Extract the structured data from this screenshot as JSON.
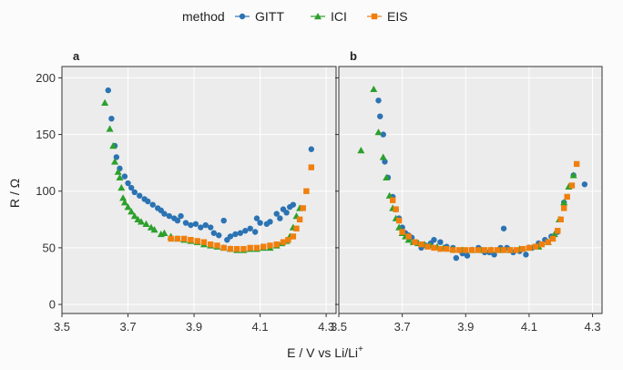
{
  "legend": {
    "title": "method",
    "items": [
      {
        "name": "GITT",
        "color": "#2b73b3",
        "shape": "circle"
      },
      {
        "name": "ICI",
        "color": "#2ca02c",
        "shape": "triangle"
      },
      {
        "name": "EIS",
        "color": "#f07f0e",
        "shape": "square"
      }
    ]
  },
  "xlabel": "E / V vs Li/Li",
  "xlabel_sup": "+",
  "ylabel": "R / Ω",
  "chart_data": [
    {
      "panel": "a",
      "type": "scatter",
      "xlim": [
        3.5,
        4.33
      ],
      "ylim": [
        -8,
        210
      ],
      "xticks": [
        3.5,
        3.7,
        3.9,
        4.1,
        4.3
      ],
      "xticklabels": [
        "3.5",
        "3.7",
        "3.9",
        "4.1",
        "4.3"
      ],
      "yticks": [
        0,
        50,
        100,
        150,
        200
      ],
      "yticklabels": [
        "0",
        "50",
        "100",
        "150",
        "200"
      ],
      "grid": true,
      "series": [
        {
          "name": "GITT",
          "points": [
            [
              3.64,
              189
            ],
            [
              3.65,
              164
            ],
            [
              3.66,
              140
            ],
            [
              3.665,
              130
            ],
            [
              3.675,
              120
            ],
            [
              3.69,
              113
            ],
            [
              3.7,
              107
            ],
            [
              3.71,
              103
            ],
            [
              3.72,
              99
            ],
            [
              3.735,
              96
            ],
            [
              3.75,
              93
            ],
            [
              3.76,
              91
            ],
            [
              3.775,
              88
            ],
            [
              3.79,
              85
            ],
            [
              3.8,
              83
            ],
            [
              3.81,
              80
            ],
            [
              3.825,
              78
            ],
            [
              3.84,
              76
            ],
            [
              3.85,
              74
            ],
            [
              3.86,
              78
            ],
            [
              3.875,
              72
            ],
            [
              3.89,
              70
            ],
            [
              3.905,
              71
            ],
            [
              3.92,
              68
            ],
            [
              3.935,
              70
            ],
            [
              3.95,
              68
            ],
            [
              3.96,
              63
            ],
            [
              3.975,
              61
            ],
            [
              3.99,
              74
            ],
            [
              4.0,
              57
            ],
            [
              4.01,
              60
            ],
            [
              4.025,
              62
            ],
            [
              4.04,
              63
            ],
            [
              4.055,
              65
            ],
            [
              4.07,
              67
            ],
            [
              4.085,
              64
            ],
            [
              4.09,
              76
            ],
            [
              4.1,
              72
            ],
            [
              4.12,
              71
            ],
            [
              4.13,
              73
            ],
            [
              4.15,
              80
            ],
            [
              4.16,
              76
            ],
            [
              4.17,
              84
            ],
            [
              4.18,
              81
            ],
            [
              4.19,
              86
            ],
            [
              4.2,
              88
            ],
            [
              4.255,
              137
            ]
          ]
        },
        {
          "name": "ICI",
          "points": [
            [
              3.63,
              178
            ],
            [
              3.645,
              155
            ],
            [
              3.655,
              140
            ],
            [
              3.66,
              126
            ],
            [
              3.67,
              117
            ],
            [
              3.675,
              112
            ],
            [
              3.68,
              103
            ],
            [
              3.685,
              94
            ],
            [
              3.69,
              90
            ],
            [
              3.7,
              86
            ],
            [
              3.71,
              82
            ],
            [
              3.72,
              78
            ],
            [
              3.73,
              75
            ],
            [
              3.74,
              73
            ],
            [
              3.755,
              71
            ],
            [
              3.77,
              68
            ],
            [
              3.78,
              66
            ],
            [
              3.8,
              62
            ],
            [
              3.81,
              63
            ],
            [
              3.83,
              60
            ],
            [
              3.85,
              58
            ],
            [
              3.87,
              57
            ],
            [
              3.89,
              56
            ],
            [
              3.91,
              55
            ],
            [
              3.93,
              53
            ],
            [
              3.95,
              52
            ],
            [
              3.97,
              51
            ],
            [
              3.99,
              50
            ],
            [
              4.01,
              49
            ],
            [
              4.03,
              48
            ],
            [
              4.05,
              48
            ],
            [
              4.07,
              49
            ],
            [
              4.09,
              49
            ],
            [
              4.11,
              50
            ],
            [
              4.13,
              50
            ],
            [
              4.15,
              52
            ],
            [
              4.165,
              54
            ],
            [
              4.18,
              56
            ],
            [
              4.19,
              60
            ],
            [
              4.2,
              68
            ],
            [
              4.21,
              78
            ],
            [
              4.22,
              85
            ]
          ]
        },
        {
          "name": "EIS",
          "points": [
            [
              3.83,
              58
            ],
            [
              3.85,
              58
            ],
            [
              3.87,
              58
            ],
            [
              3.89,
              57
            ],
            [
              3.91,
              56
            ],
            [
              3.93,
              55
            ],
            [
              3.95,
              53
            ],
            [
              3.97,
              52
            ],
            [
              3.99,
              50
            ],
            [
              4.01,
              49
            ],
            [
              4.03,
              49
            ],
            [
              4.05,
              49
            ],
            [
              4.07,
              50
            ],
            [
              4.09,
              50
            ],
            [
              4.11,
              51
            ],
            [
              4.13,
              52
            ],
            [
              4.15,
              53
            ],
            [
              4.17,
              55
            ],
            [
              4.185,
              57
            ],
            [
              4.2,
              60
            ],
            [
              4.21,
              67
            ],
            [
              4.22,
              75
            ],
            [
              4.23,
              85
            ],
            [
              4.24,
              100
            ],
            [
              4.255,
              121
            ]
          ]
        }
      ]
    },
    {
      "panel": "b",
      "type": "scatter",
      "xlim": [
        3.5,
        4.33
      ],
      "ylim": [
        -8,
        210
      ],
      "xticks": [
        3.5,
        3.7,
        3.9,
        4.1,
        4.3
      ],
      "xticklabels": [
        "3.5",
        "3.7",
        "3.9",
        "4.1",
        "4.3"
      ],
      "yticks": [
        0,
        50,
        100,
        150,
        200
      ],
      "yticklabels": [
        "",
        "",
        "",
        "",
        ""
      ],
      "grid": true,
      "series": [
        {
          "name": "GITT",
          "points": [
            [
              3.625,
              180
            ],
            [
              3.63,
              166
            ],
            [
              3.64,
              150
            ],
            [
              3.645,
              126
            ],
            [
              3.655,
              112
            ],
            [
              3.67,
              95
            ],
            [
              3.68,
              84
            ],
            [
              3.69,
              76
            ],
            [
              3.7,
              68
            ],
            [
              3.71,
              63
            ],
            [
              3.72,
              61
            ],
            [
              3.73,
              59
            ],
            [
              3.745,
              55
            ],
            [
              3.76,
              50
            ],
            [
              3.775,
              52
            ],
            [
              3.79,
              54
            ],
            [
              3.8,
              57
            ],
            [
              3.82,
              55
            ],
            [
              3.84,
              51
            ],
            [
              3.86,
              50
            ],
            [
              3.87,
              41
            ],
            [
              3.89,
              45
            ],
            [
              3.905,
              43
            ],
            [
              3.92,
              48
            ],
            [
              3.94,
              50
            ],
            [
              3.96,
              46
            ],
            [
              3.975,
              46
            ],
            [
              3.99,
              44
            ],
            [
              4.01,
              50
            ],
            [
              4.02,
              67
            ],
            [
              4.03,
              50
            ],
            [
              4.05,
              46
            ],
            [
              4.07,
              47
            ],
            [
              4.09,
              44
            ],
            [
              4.11,
              50
            ],
            [
              4.13,
              54
            ],
            [
              4.15,
              57
            ],
            [
              4.17,
              60
            ],
            [
              4.19,
              64
            ],
            [
              4.21,
              90
            ],
            [
              4.24,
              114
            ],
            [
              4.275,
              106
            ]
          ]
        },
        {
          "name": "ICI",
          "points": [
            [
              3.57,
              136
            ],
            [
              3.61,
              190
            ],
            [
              3.625,
              152
            ],
            [
              3.64,
              130
            ],
            [
              3.65,
              112
            ],
            [
              3.66,
              96
            ],
            [
              3.67,
              85
            ],
            [
              3.68,
              76
            ],
            [
              3.69,
              68
            ],
            [
              3.7,
              63
            ],
            [
              3.71,
              60
            ],
            [
              3.72,
              57
            ],
            [
              3.735,
              55
            ],
            [
              3.75,
              54
            ],
            [
              3.77,
              53
            ],
            [
              3.79,
              52
            ],
            [
              3.81,
              51
            ],
            [
              3.83,
              50
            ],
            [
              3.86,
              49
            ],
            [
              3.89,
              48
            ],
            [
              3.92,
              48
            ],
            [
              3.95,
              48
            ],
            [
              3.98,
              48
            ],
            [
              4.01,
              48
            ],
            [
              4.04,
              48
            ],
            [
              4.07,
              49
            ],
            [
              4.1,
              50
            ],
            [
              4.13,
              51
            ],
            [
              4.16,
              55
            ],
            [
              4.18,
              62
            ],
            [
              4.195,
              75
            ],
            [
              4.21,
              90
            ],
            [
              4.225,
              104
            ],
            [
              4.24,
              114
            ]
          ]
        },
        {
          "name": "EIS",
          "points": [
            [
              3.67,
              92
            ],
            [
              3.68,
              84
            ],
            [
              3.69,
              74
            ],
            [
              3.7,
              64
            ],
            [
              3.72,
              60
            ],
            [
              3.74,
              55
            ],
            [
              3.76,
              53
            ],
            [
              3.78,
              51
            ],
            [
              3.8,
              50
            ],
            [
              3.82,
              49
            ],
            [
              3.84,
              49
            ],
            [
              3.86,
              48
            ],
            [
              3.88,
              48
            ],
            [
              3.9,
              48
            ],
            [
              3.92,
              48
            ],
            [
              3.94,
              48
            ],
            [
              3.96,
              48
            ],
            [
              3.98,
              48
            ],
            [
              4.0,
              48
            ],
            [
              4.02,
              48
            ],
            [
              4.04,
              48
            ],
            [
              4.06,
              48
            ],
            [
              4.08,
              49
            ],
            [
              4.1,
              50
            ],
            [
              4.12,
              51
            ],
            [
              4.14,
              53
            ],
            [
              4.16,
              55
            ],
            [
              4.175,
              58
            ],
            [
              4.19,
              65
            ],
            [
              4.2,
              75
            ],
            [
              4.21,
              85
            ],
            [
              4.22,
              95
            ],
            [
              4.235,
              105
            ],
            [
              4.25,
              124
            ]
          ]
        }
      ]
    }
  ]
}
